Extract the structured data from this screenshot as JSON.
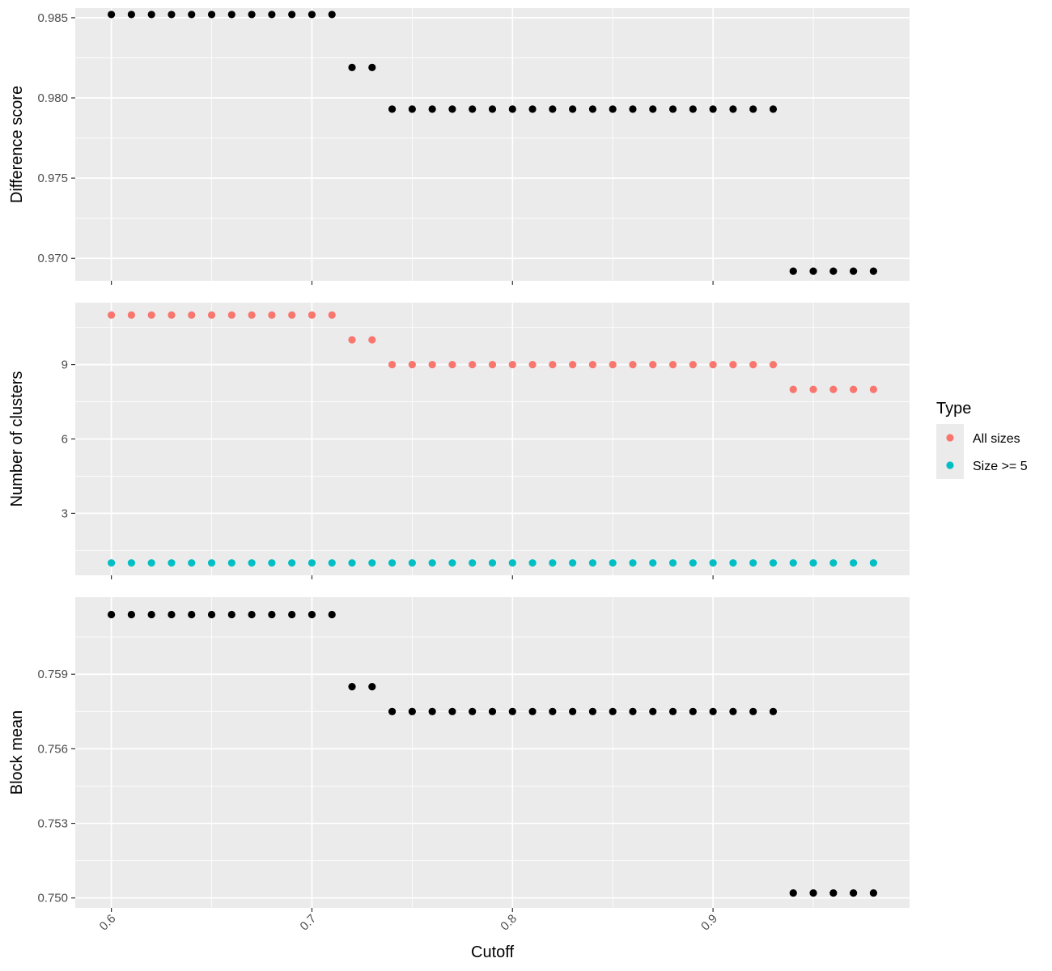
{
  "chart_data": {
    "type": "scatter",
    "xlabel": "Cutoff",
    "x_ticks": [
      0.6,
      0.7,
      0.8,
      0.9
    ],
    "xlim": [
      0.582,
      0.998
    ],
    "x": [
      0.6,
      0.61,
      0.62,
      0.63,
      0.64,
      0.65,
      0.66,
      0.67,
      0.68,
      0.69,
      0.7,
      0.71,
      0.72,
      0.73,
      0.74,
      0.75,
      0.76,
      0.77,
      0.78,
      0.79,
      0.8,
      0.81,
      0.82,
      0.83,
      0.84,
      0.85,
      0.86,
      0.87,
      0.88,
      0.89,
      0.9,
      0.91,
      0.92,
      0.93,
      0.94,
      0.95,
      0.96,
      0.97,
      0.98
    ],
    "grid": true,
    "legend": {
      "title": "Type",
      "placement": "right",
      "entries": [
        {
          "label": "All sizes",
          "color": "#F8766D"
        },
        {
          "label": "Size >= 5",
          "color": "#00BFC4"
        }
      ]
    },
    "panels": [
      {
        "ylabel": "Difference score",
        "ylim": [
          0.9686,
          0.9856
        ],
        "y_ticks": [
          0.97,
          0.975,
          0.98,
          0.985
        ],
        "y_tick_labels": [
          "0.970",
          "0.975",
          "0.980",
          "0.985"
        ],
        "series": [
          {
            "color": "#000000",
            "values": [
              0.9852,
              0.9852,
              0.9852,
              0.9852,
              0.9852,
              0.9852,
              0.9852,
              0.9852,
              0.9852,
              0.9852,
              0.9852,
              0.9852,
              0.9819,
              0.9819,
              0.9793,
              0.9793,
              0.9793,
              0.9793,
              0.9793,
              0.9793,
              0.9793,
              0.9793,
              0.9793,
              0.9793,
              0.9793,
              0.9793,
              0.9793,
              0.9793,
              0.9793,
              0.9793,
              0.9793,
              0.9793,
              0.9793,
              0.9793,
              0.9692,
              0.9692,
              0.9692,
              0.9692,
              0.9692
            ]
          }
        ]
      },
      {
        "ylabel": "Number of clusters",
        "ylim": [
          0.5,
          11.5
        ],
        "y_ticks": [
          3,
          6,
          9
        ],
        "y_tick_labels": [
          "3",
          "6",
          "9"
        ],
        "series": [
          {
            "name": "All sizes",
            "color": "#F8766D",
            "values": [
              11,
              11,
              11,
              11,
              11,
              11,
              11,
              11,
              11,
              11,
              11,
              11,
              10,
              10,
              9,
              9,
              9,
              9,
              9,
              9,
              9,
              9,
              9,
              9,
              9,
              9,
              9,
              9,
              9,
              9,
              9,
              9,
              9,
              9,
              8,
              8,
              8,
              8,
              8
            ]
          },
          {
            "name": "Size >= 5",
            "color": "#00BFC4",
            "values": [
              1,
              1,
              1,
              1,
              1,
              1,
              1,
              1,
              1,
              1,
              1,
              1,
              1,
              1,
              1,
              1,
              1,
              1,
              1,
              1,
              1,
              1,
              1,
              1,
              1,
              1,
              1,
              1,
              1,
              1,
              1,
              1,
              1,
              1,
              1,
              1,
              1,
              1,
              1
            ]
          }
        ]
      },
      {
        "ylabel": "Block mean",
        "ylim": [
          0.7496,
          0.7621
        ],
        "y_ticks": [
          0.75,
          0.753,
          0.756,
          0.759
        ],
        "y_tick_labels": [
          "0.750",
          "0.753",
          "0.756",
          "0.759"
        ],
        "series": [
          {
            "color": "#000000",
            "values": [
              0.7614,
              0.7614,
              0.7614,
              0.7614,
              0.7614,
              0.7614,
              0.7614,
              0.7614,
              0.7614,
              0.7614,
              0.7614,
              0.7614,
              0.7585,
              0.7585,
              0.7575,
              0.7575,
              0.7575,
              0.7575,
              0.7575,
              0.7575,
              0.7575,
              0.7575,
              0.7575,
              0.7575,
              0.7575,
              0.7575,
              0.7575,
              0.7575,
              0.7575,
              0.7575,
              0.7575,
              0.7575,
              0.7575,
              0.7575,
              0.7502,
              0.7502,
              0.7502,
              0.7502,
              0.7502
            ]
          }
        ]
      }
    ]
  }
}
